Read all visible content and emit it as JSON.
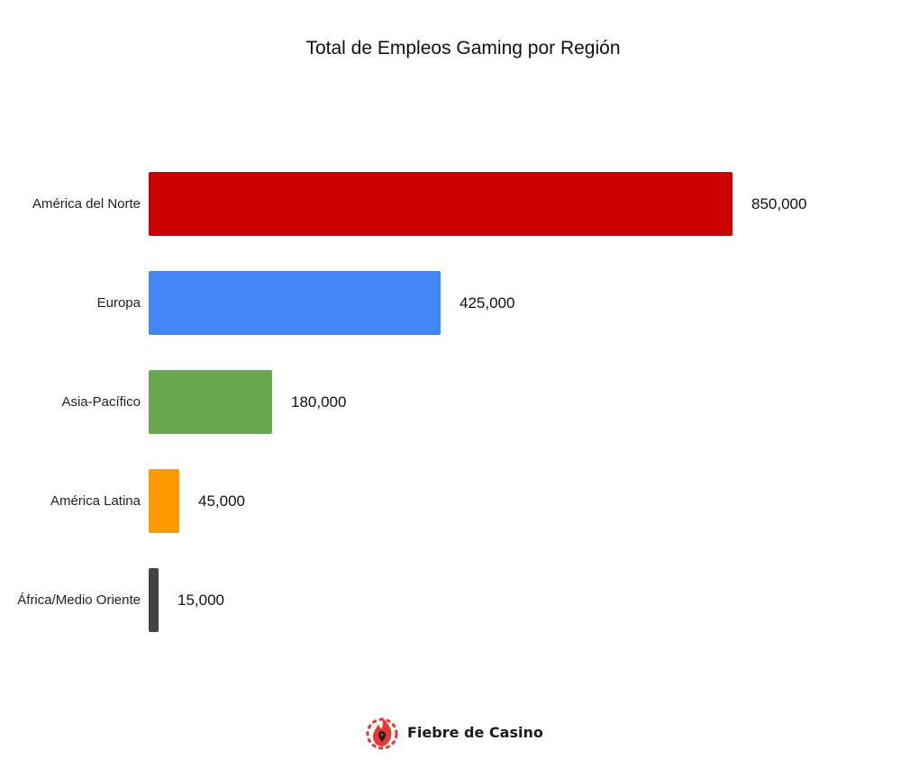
{
  "chart_data": {
    "type": "bar",
    "orientation": "horizontal",
    "title": "Total de Empleos Gaming por Región",
    "xlabel": "",
    "ylabel": "",
    "categories": [
      "América del Norte",
      "Europa",
      "Asia-Pacífico",
      "América Latina",
      "África/Medio Oriente"
    ],
    "values": [
      850000,
      425000,
      180000,
      45000,
      15000
    ],
    "value_labels": [
      "850,000",
      "425,000",
      "180,000",
      "45,000",
      "15,000"
    ],
    "colors": [
      "#cc0000",
      "#4285f4",
      "#6aa84f",
      "#ff9900",
      "#434343"
    ],
    "grid": false,
    "legend": "none",
    "xlim": [
      0,
      850000
    ]
  },
  "rows": [
    {
      "label": "América del Norte",
      "value": "850,000",
      "color": "#cc0000"
    },
    {
      "label": "Europa",
      "value": "425,000",
      "color": "#4285f4"
    },
    {
      "label": "Asia-Pacífico",
      "value": "180,000",
      "color": "#6aa84f"
    },
    {
      "label": "América Latina",
      "value": "45,000",
      "color": "#ff9900"
    },
    {
      "label": "África/Medio Oriente",
      "value": "15,000",
      "color": "#434343"
    }
  ],
  "branding": {
    "name": "Fiebre de Casino",
    "color": "#e53935"
  }
}
